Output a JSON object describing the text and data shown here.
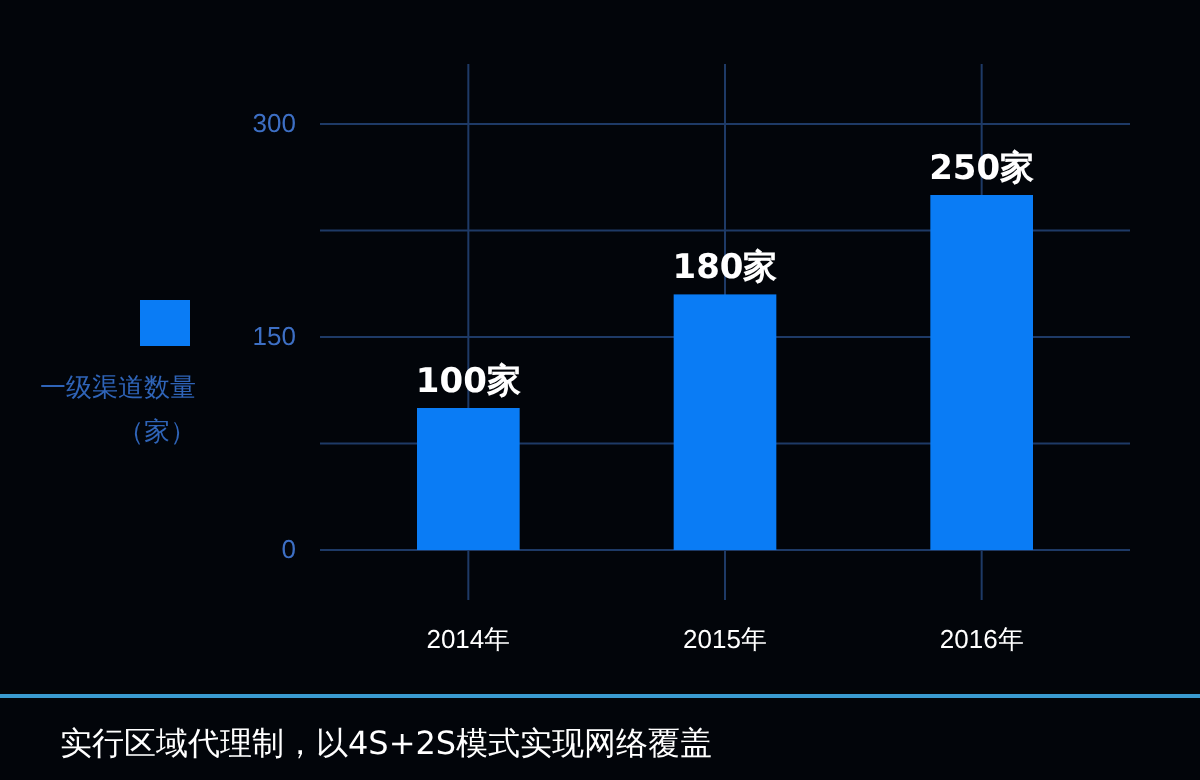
{
  "chart_data": {
    "type": "bar",
    "categories": [
      "2014年",
      "2015年",
      "2016年"
    ],
    "series": [
      {
        "name": "一级渠道数量（家）",
        "color": "#0a7cf5",
        "values": [
          100,
          180,
          250
        ],
        "value_labels": [
          "100家",
          "180家",
          "250家"
        ]
      }
    ],
    "ylim": [
      0,
      300
    ],
    "yticks": [
      0,
      {
        "value": 75,
        "label": null
      },
      150,
      {
        "value": 225,
        "label": null
      },
      300
    ],
    "grid": true,
    "legend": "left",
    "annotations": [
      "实行区域代理制，以4S+2S模式实现网络覆盖"
    ]
  }
}
